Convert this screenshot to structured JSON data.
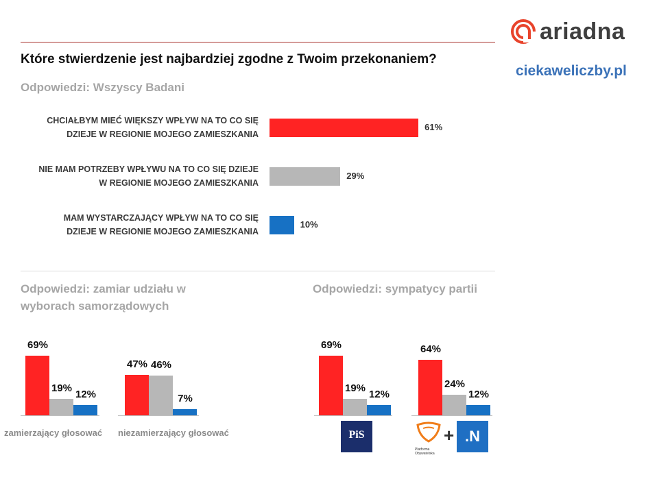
{
  "header": {
    "question": "Które stwierdzenie jest najbardziej zgodne z Twoim przekonaniem?",
    "subtitle": "Odpowiedzi: Wszyscy Badani",
    "brand": "ariadna",
    "site": "ciekaweliczby.pl"
  },
  "colors": {
    "red": "#ff2323",
    "grey": "#b7b7b7",
    "blue": "#1771c4"
  },
  "chart_data": [
    {
      "type": "bar",
      "orientation": "horizontal",
      "title": "Odpowiedzi: Wszyscy Badani",
      "categories": [
        [
          "CHCIAŁBYM MIEĆ WIĘKSZY WPŁYW NA TO CO SIĘ",
          "DZIEJE W REGIONIE MOJEGO ZAMIESZKANIA"
        ],
        [
          "NIE MAM POTRZEBY WPŁYWU NA TO CO SIĘ DZIEJE",
          "W REGIONIE MOJEGO ZAMIESZKANIA"
        ],
        [
          "MAM WYSTARCZAJĄCY WPŁYW NA TO CO SIĘ",
          "DZIEJE W REGIONIE MOJEGO ZAMIESZKANIA"
        ]
      ],
      "values": [
        61,
        29,
        10
      ],
      "value_labels": [
        "61%",
        "29%",
        "10%"
      ],
      "unit": "%",
      "xlim": [
        0,
        100
      ]
    },
    {
      "type": "bar",
      "title": [
        "Odpowiedzi: zamiar udziału w",
        "wyborach samorządowych"
      ],
      "groups": [
        "zamierzający głosować",
        "niezamierzający głosować"
      ],
      "series": [
        {
          "name": "CHCIAŁBYM MIEĆ WIĘKSZY WPŁYW",
          "values": [
            69,
            47
          ],
          "labels": [
            "69%",
            "47%"
          ]
        },
        {
          "name": "NIE MAM POTRZEBY WPŁYWU",
          "values": [
            19,
            46
          ],
          "labels": [
            "19%",
            "46%"
          ]
        },
        {
          "name": "MAM WYSTARCZAJĄCY WPŁYW",
          "values": [
            12,
            7
          ],
          "labels": [
            "12%",
            "7%"
          ]
        }
      ],
      "unit": "%",
      "ylim": [
        0,
        100
      ]
    },
    {
      "type": "bar",
      "title": "Odpowiedzi: sympatycy partii",
      "groups": [
        "PiS",
        "Platforma Obywatelska + .N"
      ],
      "series": [
        {
          "name": "CHCIAŁBYM MIEĆ WIĘKSZY WPŁYW",
          "values": [
            69,
            64
          ],
          "labels": [
            "69%",
            "64%"
          ]
        },
        {
          "name": "NIE MAM POTRZEBY WPŁYWU",
          "values": [
            19,
            24
          ],
          "labels": [
            "19%",
            "24%"
          ]
        },
        {
          "name": "MAM WYSTARCZAJĄCY WPŁYW",
          "values": [
            12,
            12
          ],
          "labels": [
            "12%",
            "12%"
          ]
        }
      ],
      "unit": "%",
      "ylim": [
        0,
        100
      ]
    }
  ],
  "logos": {
    "pis": "PiS",
    "po": "Platforma Obywatelska",
    "plus": "+",
    "n": ".N"
  }
}
